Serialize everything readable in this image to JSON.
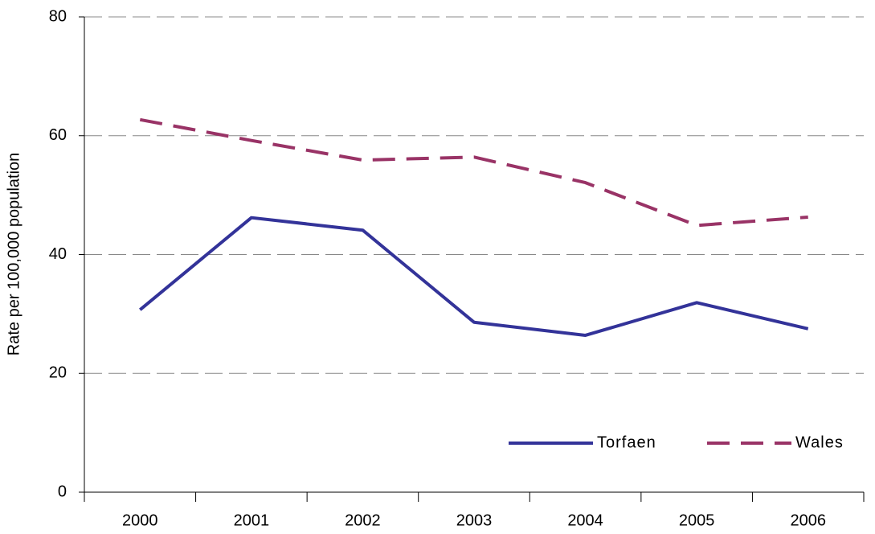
{
  "chart_data": {
    "type": "line",
    "y_label": "Rate per 100,000 population",
    "categories": [
      "2000",
      "2001",
      "2002",
      "2003",
      "2004",
      "2005",
      "2006"
    ],
    "series": [
      {
        "name": "Torfaen",
        "color": "#333399",
        "dash": false,
        "values": [
          30.7,
          46.2,
          44.1,
          28.6,
          26.4,
          31.9,
          27.5
        ]
      },
      {
        "name": "Wales",
        "color": "#993366",
        "dash": true,
        "values": [
          62.7,
          59.2,
          55.9,
          56.4,
          52.1,
          44.9,
          46.3
        ]
      }
    ],
    "ylim": [
      0,
      80
    ],
    "yticks": [
      0,
      20,
      40,
      60,
      80
    ],
    "grid": true,
    "legend": "lower right"
  }
}
